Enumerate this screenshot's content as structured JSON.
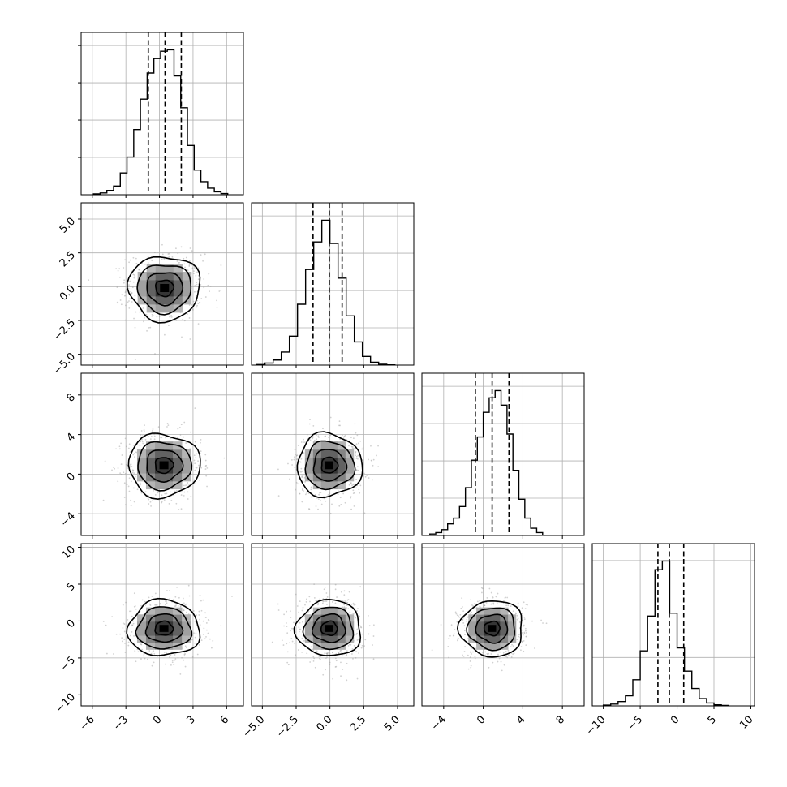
{
  "chart_data": {
    "type": "corner",
    "grid": true,
    "parameters": [
      {
        "range": [
          -7,
          7.5
        ],
        "ticks": [
          -6,
          -3,
          0,
          3,
          6
        ],
        "tick_labels": [
          "−6",
          "−3",
          "0",
          "3",
          "6"
        ],
        "quantiles": [
          -1.0,
          0.5,
          1.95
        ],
        "hist_bin_edges": [
          -5.9,
          -5.3,
          -4.7,
          -4.1,
          -3.5,
          -2.9,
          -2.3,
          -1.7,
          -1.1,
          -0.5,
          0.1,
          0.7,
          1.3,
          1.9,
          2.5,
          3.1,
          3.7,
          4.3,
          4.9,
          5.5,
          6.1
        ],
        "hist_counts": [
          0.006,
          0.012,
          0.03,
          0.06,
          0.15,
          0.26,
          0.45,
          0.66,
          0.84,
          0.94,
          0.99,
          1.0,
          0.82,
          0.6,
          0.34,
          0.17,
          0.09,
          0.045,
          0.02,
          0.008
        ]
      },
      {
        "range": [
          -5.8,
          6.2
        ],
        "ticks": [
          -5.0,
          -2.5,
          0.0,
          2.5,
          5.0
        ],
        "tick_labels": [
          "−5.0",
          "−2.5",
          "0.0",
          "2.5",
          "5.0"
        ],
        "quantiles": [
          -1.25,
          -0.05,
          0.9
        ],
        "hist_bin_edges": [
          -5.4,
          -4.8,
          -4.2,
          -3.6,
          -3.0,
          -2.4,
          -1.8,
          -1.2,
          -0.6,
          0.0,
          0.6,
          1.2,
          1.8,
          2.4,
          3.0,
          3.6,
          4.2,
          4.8
        ],
        "hist_counts": [
          0.004,
          0.014,
          0.035,
          0.09,
          0.2,
          0.42,
          0.66,
          0.85,
          1.0,
          0.84,
          0.6,
          0.34,
          0.16,
          0.06,
          0.02,
          0.006,
          0.002
        ]
      },
      {
        "range": [
          -6.2,
          10.2
        ],
        "ticks": [
          -4,
          0,
          4,
          8
        ],
        "tick_labels": [
          "−4",
          "0",
          "4",
          "8"
        ],
        "quantiles": [
          -0.8,
          0.9,
          2.6
        ],
        "hist_bin_edges": [
          -5.4,
          -4.8,
          -4.2,
          -3.6,
          -3.0,
          -2.4,
          -1.8,
          -1.2,
          -0.6,
          0.0,
          0.6,
          1.2,
          1.8,
          2.4,
          3.0,
          3.6,
          4.2,
          4.8,
          5.4,
          6.0
        ],
        "hist_counts": [
          0.01,
          0.02,
          0.04,
          0.08,
          0.12,
          0.2,
          0.33,
          0.52,
          0.68,
          0.85,
          0.95,
          1.0,
          0.9,
          0.7,
          0.45,
          0.25,
          0.12,
          0.05,
          0.02
        ]
      },
      {
        "range": [
          -11.5,
          10.5
        ],
        "ticks": [
          -10,
          -5,
          0,
          5,
          10
        ],
        "tick_labels": [
          "−10",
          "−5",
          "0",
          "5",
          "10"
        ],
        "quantiles": [
          -2.6,
          -1.05,
          0.9
        ],
        "hist_bin_edges": [
          -10.0,
          -9.0,
          -8.0,
          -7.0,
          -6.0,
          -5.0,
          -4.0,
          -3.0,
          -2.0,
          -1.0,
          0.0,
          1.0,
          2.0,
          3.0,
          4.0,
          5.0,
          6.0,
          7.0
        ],
        "hist_counts": [
          0.005,
          0.012,
          0.03,
          0.07,
          0.18,
          0.38,
          0.62,
          0.94,
          1.0,
          0.64,
          0.4,
          0.24,
          0.12,
          0.05,
          0.02,
          0.007,
          0.003
        ]
      }
    ],
    "pairs": [
      {
        "x": 0,
        "y": 1,
        "center": [
          0.45,
          -0.1
        ],
        "sigma": [
          1.6,
          1.2
        ],
        "scatter_extent": [
          4.3,
          3.3
        ]
      },
      {
        "x": 0,
        "y": 2,
        "center": [
          0.4,
          0.9
        ],
        "sigma": [
          1.6,
          1.6
        ],
        "scatter_extent": [
          4.4,
          4.6
        ]
      },
      {
        "x": 1,
        "y": 2,
        "center": [
          -0.05,
          0.9
        ],
        "sigma": [
          1.2,
          1.6
        ],
        "scatter_extent": [
          3.4,
          4.6
        ]
      },
      {
        "x": 0,
        "y": 3,
        "center": [
          0.4,
          -1.0
        ],
        "sigma": [
          1.6,
          1.9
        ],
        "scatter_extent": [
          4.4,
          5.4
        ]
      },
      {
        "x": 1,
        "y": 3,
        "center": [
          -0.05,
          -1.0
        ],
        "sigma": [
          1.2,
          1.9
        ],
        "scatter_extent": [
          3.4,
          5.4
        ]
      },
      {
        "x": 2,
        "y": 3,
        "center": [
          0.9,
          -1.0
        ],
        "sigma": [
          1.6,
          1.9
        ],
        "scatter_extent": [
          4.4,
          5.4
        ]
      }
    ],
    "contour_sigma_levels": [
      0.5,
      1.0,
      1.5,
      2.0
    ]
  }
}
